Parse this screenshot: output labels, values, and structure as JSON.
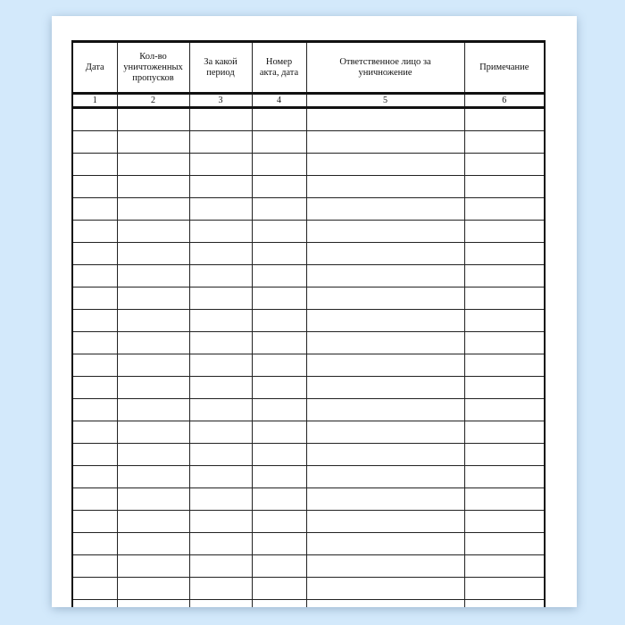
{
  "form": {
    "columns": [
      {
        "header": "Дата",
        "number": "1"
      },
      {
        "header": "Кол-во уничтоженных пропусков",
        "number": "2"
      },
      {
        "header": "За какой период",
        "number": "3"
      },
      {
        "header": "Номер акта, дата",
        "number": "4"
      },
      {
        "header": "Ответственное лицо за уничножение",
        "number": "5"
      },
      {
        "header": "Примечание",
        "number": "6"
      }
    ],
    "empty_rows": 23
  }
}
